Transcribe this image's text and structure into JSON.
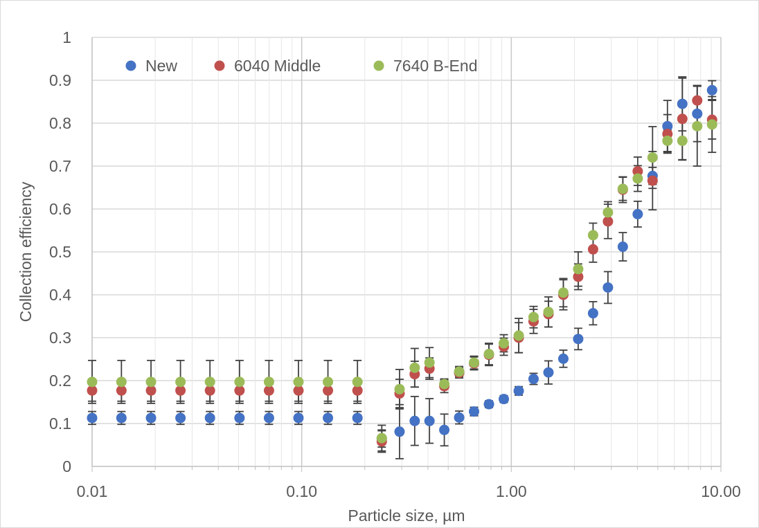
{
  "chart_data": {
    "type": "scatter",
    "xscale": "log",
    "xlim": [
      0.01,
      10
    ],
    "ylim": [
      0,
      1
    ],
    "xlabel": "Particle size, µm",
    "ylabel": "Collection efficiency",
    "title": "",
    "grid": true,
    "legend_position": "top-left",
    "x_tick_labels": [
      "0.01",
      "0.10",
      "1.00",
      "10.00"
    ],
    "x_tick_values": [
      0.01,
      0.1,
      1,
      10
    ],
    "y_tick_labels": [
      "0",
      "0.1",
      "0.2",
      "0.3",
      "0.4",
      "0.5",
      "0.6",
      "0.7",
      "0.8",
      "0.9",
      "1"
    ],
    "y_tick_values": [
      0,
      0.1,
      0.2,
      0.3,
      0.4,
      0.5,
      0.6,
      0.7,
      0.8,
      0.9,
      1
    ],
    "error_bar_color": "#404040",
    "series": [
      {
        "name": "New",
        "color": "#4472c4",
        "points": [
          {
            "x": 0.01,
            "y": 0.113,
            "err": 0.015
          },
          {
            "x": 0.0138,
            "y": 0.113,
            "err": 0.015
          },
          {
            "x": 0.0191,
            "y": 0.113,
            "err": 0.015
          },
          {
            "x": 0.0264,
            "y": 0.113,
            "err": 0.015
          },
          {
            "x": 0.0365,
            "y": 0.113,
            "err": 0.015
          },
          {
            "x": 0.0505,
            "y": 0.113,
            "err": 0.015
          },
          {
            "x": 0.0698,
            "y": 0.113,
            "err": 0.015
          },
          {
            "x": 0.0965,
            "y": 0.113,
            "err": 0.015
          },
          {
            "x": 0.1334,
            "y": 0.113,
            "err": 0.015
          },
          {
            "x": 0.1845,
            "y": 0.113,
            "err": 0.015
          },
          {
            "x": 0.241,
            "y": 0.065,
            "err": 0.02
          },
          {
            "x": 0.293,
            "y": 0.081,
            "err": 0.063
          },
          {
            "x": 0.346,
            "y": 0.106,
            "err": 0.057
          },
          {
            "x": 0.407,
            "y": 0.106,
            "err": 0.052
          },
          {
            "x": 0.479,
            "y": 0.085,
            "err": 0.037
          },
          {
            "x": 0.564,
            "y": 0.114,
            "err": 0.015
          },
          {
            "x": 0.664,
            "y": 0.128,
            "err": 0.01
          },
          {
            "x": 0.782,
            "y": 0.145,
            "err": 0.008
          },
          {
            "x": 0.921,
            "y": 0.157,
            "err": 0.008
          },
          {
            "x": 1.085,
            "y": 0.176,
            "err": 0.01
          },
          {
            "x": 1.277,
            "y": 0.204,
            "err": 0.013
          },
          {
            "x": 1.504,
            "y": 0.219,
            "err": 0.027
          },
          {
            "x": 1.771,
            "y": 0.251,
            "err": 0.02
          },
          {
            "x": 2.085,
            "y": 0.297,
            "err": 0.025
          },
          {
            "x": 2.455,
            "y": 0.357,
            "err": 0.027
          },
          {
            "x": 2.891,
            "y": 0.417,
            "err": 0.037
          },
          {
            "x": 3.404,
            "y": 0.512,
            "err": 0.033
          },
          {
            "x": 4.009,
            "y": 0.588,
            "err": 0.03
          },
          {
            "x": 4.72,
            "y": 0.677,
            "err": 0.02
          },
          {
            "x": 5.558,
            "y": 0.793,
            "err": 0.06
          },
          {
            "x": 6.545,
            "y": 0.845,
            "err": 0.063
          },
          {
            "x": 7.707,
            "y": 0.822,
            "err": 0.065
          },
          {
            "x": 9.075,
            "y": 0.877,
            "err": 0.022
          }
        ]
      },
      {
        "name": "6040 Middle",
        "color": "#c0504d",
        "points": [
          {
            "x": 0.01,
            "y": 0.177,
            "err": 0.025
          },
          {
            "x": 0.0138,
            "y": 0.177,
            "err": 0.025
          },
          {
            "x": 0.0191,
            "y": 0.177,
            "err": 0.025
          },
          {
            "x": 0.0264,
            "y": 0.177,
            "err": 0.025
          },
          {
            "x": 0.0365,
            "y": 0.177,
            "err": 0.025
          },
          {
            "x": 0.0505,
            "y": 0.177,
            "err": 0.025
          },
          {
            "x": 0.0698,
            "y": 0.177,
            "err": 0.025
          },
          {
            "x": 0.0965,
            "y": 0.177,
            "err": 0.025
          },
          {
            "x": 0.1334,
            "y": 0.177,
            "err": 0.025
          },
          {
            "x": 0.1845,
            "y": 0.177,
            "err": 0.025
          },
          {
            "x": 0.241,
            "y": 0.058,
            "err": 0.025
          },
          {
            "x": 0.293,
            "y": 0.17,
            "err": 0.033
          },
          {
            "x": 0.346,
            "y": 0.215,
            "err": 0.03
          },
          {
            "x": 0.407,
            "y": 0.228,
            "err": 0.025
          },
          {
            "x": 0.479,
            "y": 0.187,
            "err": 0.015
          },
          {
            "x": 0.564,
            "y": 0.218,
            "err": 0.012
          },
          {
            "x": 0.664,
            "y": 0.24,
            "err": 0.015
          },
          {
            "x": 0.782,
            "y": 0.26,
            "err": 0.025
          },
          {
            "x": 0.921,
            "y": 0.279,
            "err": 0.02
          },
          {
            "x": 1.085,
            "y": 0.3,
            "err": 0.035
          },
          {
            "x": 1.277,
            "y": 0.338,
            "err": 0.028
          },
          {
            "x": 1.504,
            "y": 0.355,
            "err": 0.03
          },
          {
            "x": 1.771,
            "y": 0.4,
            "err": 0.035
          },
          {
            "x": 2.085,
            "y": 0.442,
            "err": 0.03
          },
          {
            "x": 2.455,
            "y": 0.506,
            "err": 0.03
          },
          {
            "x": 2.891,
            "y": 0.571,
            "err": 0.04
          },
          {
            "x": 3.404,
            "y": 0.645,
            "err": 0.03
          },
          {
            "x": 4.009,
            "y": 0.688,
            "err": 0.033
          },
          {
            "x": 4.72,
            "y": 0.666,
            "err": 0.068
          },
          {
            "x": 5.558,
            "y": 0.775,
            "err": 0.045
          },
          {
            "x": 6.545,
            "y": 0.81,
            "err": 0.095
          },
          {
            "x": 7.707,
            "y": 0.853,
            "err": 0.035
          },
          {
            "x": 9.075,
            "y": 0.808,
            "err": 0.045
          }
        ]
      },
      {
        "name": "7640 B-End",
        "color": "#9bbb59",
        "points": [
          {
            "x": 0.01,
            "y": 0.197,
            "err": 0.05
          },
          {
            "x": 0.0138,
            "y": 0.197,
            "err": 0.05
          },
          {
            "x": 0.0191,
            "y": 0.197,
            "err": 0.05
          },
          {
            "x": 0.0264,
            "y": 0.197,
            "err": 0.05
          },
          {
            "x": 0.0365,
            "y": 0.197,
            "err": 0.05
          },
          {
            "x": 0.0505,
            "y": 0.197,
            "err": 0.05
          },
          {
            "x": 0.0698,
            "y": 0.197,
            "err": 0.05
          },
          {
            "x": 0.0965,
            "y": 0.197,
            "err": 0.05
          },
          {
            "x": 0.1334,
            "y": 0.197,
            "err": 0.05
          },
          {
            "x": 0.1845,
            "y": 0.197,
            "err": 0.05
          },
          {
            "x": 0.241,
            "y": 0.066,
            "err": 0.03
          },
          {
            "x": 0.293,
            "y": 0.18,
            "err": 0.046
          },
          {
            "x": 0.346,
            "y": 0.23,
            "err": 0.045
          },
          {
            "x": 0.407,
            "y": 0.242,
            "err": 0.035
          },
          {
            "x": 0.479,
            "y": 0.192,
            "err": 0.012
          },
          {
            "x": 0.564,
            "y": 0.221,
            "err": 0.012
          },
          {
            "x": 0.664,
            "y": 0.242,
            "err": 0.015
          },
          {
            "x": 0.782,
            "y": 0.262,
            "err": 0.025
          },
          {
            "x": 0.921,
            "y": 0.287,
            "err": 0.02
          },
          {
            "x": 1.085,
            "y": 0.305,
            "err": 0.04
          },
          {
            "x": 1.277,
            "y": 0.348,
            "err": 0.025
          },
          {
            "x": 1.504,
            "y": 0.36,
            "err": 0.035
          },
          {
            "x": 1.771,
            "y": 0.405,
            "err": 0.033
          },
          {
            "x": 2.085,
            "y": 0.46,
            "err": 0.04
          },
          {
            "x": 2.455,
            "y": 0.539,
            "err": 0.028
          },
          {
            "x": 2.891,
            "y": 0.592,
            "err": 0.025
          },
          {
            "x": 3.404,
            "y": 0.647,
            "err": 0.027
          },
          {
            "x": 4.009,
            "y": 0.671,
            "err": 0.03
          },
          {
            "x": 4.72,
            "y": 0.72,
            "err": 0.072
          },
          {
            "x": 5.558,
            "y": 0.759,
            "err": 0.025
          },
          {
            "x": 6.545,
            "y": 0.759,
            "err": 0.045
          },
          {
            "x": 7.707,
            "y": 0.793,
            "err": 0.093
          },
          {
            "x": 9.075,
            "y": 0.797,
            "err": 0.065
          }
        ]
      }
    ]
  }
}
